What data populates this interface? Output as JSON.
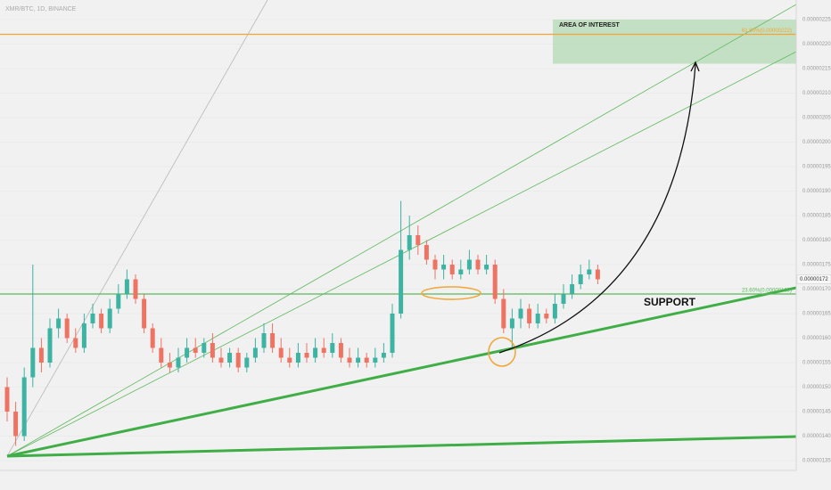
{
  "chart_data": {
    "type": "candlestick",
    "title": "XMR/BTC, 1D, BINANCE",
    "ylim": [
      1.33e-06,
      2.29e-06
    ],
    "yticks": [
      {
        "value": 1.35e-06,
        "label": "0.00000135"
      },
      {
        "value": 1.4e-06,
        "label": "0.00000140"
      },
      {
        "value": 1.45e-06,
        "label": "0.00000145"
      },
      {
        "value": 1.5e-06,
        "label": "0.00000150"
      },
      {
        "value": 1.55e-06,
        "label": "0.00000155"
      },
      {
        "value": 1.6e-06,
        "label": "0.00000160"
      },
      {
        "value": 1.65e-06,
        "label": "0.00000165"
      },
      {
        "value": 1.7e-06,
        "label": "0.00000170"
      },
      {
        "value": 1.75e-06,
        "label": "0.00000175"
      },
      {
        "value": 1.8e-06,
        "label": "0.00000180"
      },
      {
        "value": 1.85e-06,
        "label": "0.00000185"
      },
      {
        "value": 1.9e-06,
        "label": "0.00000190"
      },
      {
        "value": 1.95e-06,
        "label": "0.00000195"
      },
      {
        "value": 2e-06,
        "label": "0.00000200"
      },
      {
        "value": 2.05e-06,
        "label": "0.00000205"
      },
      {
        "value": 2.1e-06,
        "label": "0.00000210"
      },
      {
        "value": 2.15e-06,
        "label": "0.00000215"
      },
      {
        "value": 2.2e-06,
        "label": "0.00000220"
      },
      {
        "value": 2.25e-06,
        "label": "0.00000225"
      }
    ],
    "grid": true,
    "up_color": "#3cb3a3",
    "down_color": "#ef7362",
    "open": [
      1.5e-06,
      1.45e-06,
      1.4e-06,
      1.52e-06,
      1.58e-06,
      1.55e-06,
      1.62e-06,
      1.64e-06,
      1.6e-06,
      1.58e-06,
      1.63e-06,
      1.65e-06,
      1.62e-06,
      1.66e-06,
      1.69e-06,
      1.72e-06,
      1.68e-06,
      1.62e-06,
      1.58e-06,
      1.55e-06,
      1.54e-06,
      1.56e-06,
      1.58e-06,
      1.57e-06,
      1.59e-06,
      1.56e-06,
      1.55e-06,
      1.57e-06,
      1.54e-06,
      1.56e-06,
      1.58e-06,
      1.61e-06,
      1.58e-06,
      1.56e-06,
      1.55e-06,
      1.57e-06,
      1.56e-06,
      1.58e-06,
      1.57e-06,
      1.59e-06,
      1.56e-06,
      1.55e-06,
      1.56e-06,
      1.55e-06,
      1.56e-06,
      1.57e-06,
      1.65e-06,
      1.78e-06,
      1.81e-06,
      1.79e-06,
      1.76e-06,
      1.74e-06,
      1.75e-06,
      1.73e-06,
      1.74e-06,
      1.76e-06,
      1.74e-06,
      1.75e-06,
      1.68e-06,
      1.62e-06,
      1.64e-06,
      1.66e-06,
      1.63e-06,
      1.65e-06,
      1.64e-06,
      1.67e-06,
      1.69e-06,
      1.71e-06,
      1.73e-06,
      1.74e-06
    ],
    "high": [
      1.52e-06,
      1.47e-06,
      1.54e-06,
      1.75e-06,
      1.6e-06,
      1.64e-06,
      1.66e-06,
      1.65e-06,
      1.62e-06,
      1.65e-06,
      1.67e-06,
      1.66e-06,
      1.68e-06,
      1.71e-06,
      1.74e-06,
      1.73e-06,
      1.69e-06,
      1.63e-06,
      1.6e-06,
      1.57e-06,
      1.58e-06,
      1.6e-06,
      1.6e-06,
      1.6e-06,
      1.61e-06,
      1.58e-06,
      1.58e-06,
      1.58e-06,
      1.57e-06,
      1.6e-06,
      1.63e-06,
      1.63e-06,
      1.6e-06,
      1.58e-06,
      1.59e-06,
      1.59e-06,
      1.6e-06,
      1.6e-06,
      1.61e-06,
      1.6e-06,
      1.58e-06,
      1.58e-06,
      1.57e-06,
      1.58e-06,
      1.59e-06,
      1.67e-06,
      1.88e-06,
      1.85e-06,
      1.83e-06,
      1.8e-06,
      1.77e-06,
      1.77e-06,
      1.76e-06,
      1.76e-06,
      1.78e-06,
      1.77e-06,
      1.77e-06,
      1.76e-06,
      1.7e-06,
      1.66e-06,
      1.68e-06,
      1.67e-06,
      1.67e-06,
      1.66e-06,
      1.69e-06,
      1.71e-06,
      1.73e-06,
      1.75e-06,
      1.76e-06,
      1.75e-06
    ],
    "low": [
      1.43e-06,
      1.38e-06,
      1.39e-06,
      1.5e-06,
      1.53e-06,
      1.54e-06,
      1.6e-06,
      1.59e-06,
      1.57e-06,
      1.57e-06,
      1.62e-06,
      1.61e-06,
      1.61e-06,
      1.65e-06,
      1.68e-06,
      1.67e-06,
      1.61e-06,
      1.57e-06,
      1.54e-06,
      1.53e-06,
      1.53e-06,
      1.55e-06,
      1.56e-06,
      1.56e-06,
      1.55e-06,
      1.54e-06,
      1.54e-06,
      1.53e-06,
      1.53e-06,
      1.55e-06,
      1.57e-06,
      1.57e-06,
      1.55e-06,
      1.54e-06,
      1.54e-06,
      1.55e-06,
      1.55e-06,
      1.56e-06,
      1.56e-06,
      1.55e-06,
      1.54e-06,
      1.54e-06,
      1.54e-06,
      1.54e-06,
      1.55e-06,
      1.56e-06,
      1.64e-06,
      1.76e-06,
      1.77e-06,
      1.75e-06,
      1.72e-06,
      1.72e-06,
      1.72e-06,
      1.72e-06,
      1.73e-06,
      1.73e-06,
      1.73e-06,
      1.67e-06,
      1.61e-06,
      1.58e-06,
      1.62e-06,
      1.62e-06,
      1.62e-06,
      1.63e-06,
      1.63e-06,
      1.66e-06,
      1.68e-06,
      1.7e-06,
      1.72e-06,
      1.71e-06
    ],
    "close": [
      1.45e-06,
      1.4e-06,
      1.52e-06,
      1.58e-06,
      1.55e-06,
      1.62e-06,
      1.64e-06,
      1.6e-06,
      1.58e-06,
      1.63e-06,
      1.65e-06,
      1.62e-06,
      1.66e-06,
      1.69e-06,
      1.72e-06,
      1.68e-06,
      1.62e-06,
      1.58e-06,
      1.55e-06,
      1.54e-06,
      1.56e-06,
      1.58e-06,
      1.57e-06,
      1.59e-06,
      1.56e-06,
      1.55e-06,
      1.57e-06,
      1.54e-06,
      1.56e-06,
      1.58e-06,
      1.61e-06,
      1.58e-06,
      1.56e-06,
      1.55e-06,
      1.57e-06,
      1.56e-06,
      1.58e-06,
      1.57e-06,
      1.59e-06,
      1.56e-06,
      1.55e-06,
      1.56e-06,
      1.55e-06,
      1.56e-06,
      1.57e-06,
      1.65e-06,
      1.78e-06,
      1.81e-06,
      1.79e-06,
      1.76e-06,
      1.74e-06,
      1.75e-06,
      1.73e-06,
      1.74e-06,
      1.76e-06,
      1.74e-06,
      1.75e-06,
      1.68e-06,
      1.62e-06,
      1.64e-06,
      1.66e-06,
      1.63e-06,
      1.65e-06,
      1.64e-06,
      1.67e-06,
      1.69e-06,
      1.71e-06,
      1.73e-06,
      1.74e-06,
      1.72e-06
    ],
    "last_price": {
      "value": 1.72e-06,
      "label": "0.00000172"
    },
    "levels": [
      {
        "value": 2.22e-06,
        "label": "61.80%(0.00000222)",
        "color": "#f2a531"
      },
      {
        "value": 1.69e-06,
        "label": "23.60%(0.00000169)",
        "color": "#5cb85c"
      }
    ],
    "area": {
      "label": "AREA OF INTEREST",
      "top": 2.25e-06,
      "bottom": 2.16e-06,
      "color": "#a5d6a7"
    },
    "annotation": "SUPPORT"
  }
}
